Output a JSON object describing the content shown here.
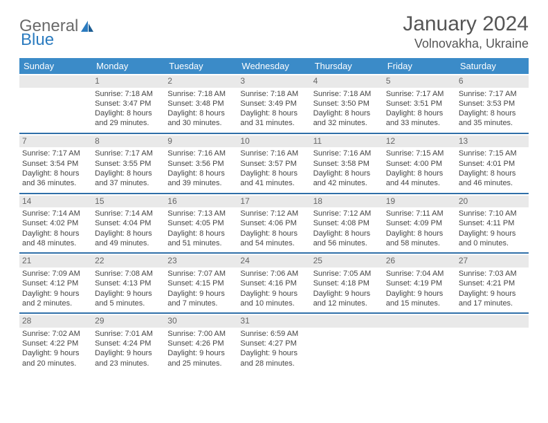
{
  "brand": {
    "word1": "General",
    "word2": "Blue"
  },
  "title": "January 2024",
  "location": "Volnovakha, Ukraine",
  "day_headers": [
    "Sunday",
    "Monday",
    "Tuesday",
    "Wednesday",
    "Thursday",
    "Friday",
    "Saturday"
  ],
  "colors": {
    "header_bg": "#3b8bc8",
    "header_text": "#ffffff",
    "daynum_bg": "#e9e9e9",
    "separator": "#2f6fa8",
    "logo_gray": "#6a6a6a",
    "logo_blue": "#2b7bbf"
  },
  "weeks": [
    [
      null,
      {
        "n": "1",
        "sr": "Sunrise: 7:18 AM",
        "ss": "Sunset: 3:47 PM",
        "d1": "Daylight: 8 hours",
        "d2": "and 29 minutes."
      },
      {
        "n": "2",
        "sr": "Sunrise: 7:18 AM",
        "ss": "Sunset: 3:48 PM",
        "d1": "Daylight: 8 hours",
        "d2": "and 30 minutes."
      },
      {
        "n": "3",
        "sr": "Sunrise: 7:18 AM",
        "ss": "Sunset: 3:49 PM",
        "d1": "Daylight: 8 hours",
        "d2": "and 31 minutes."
      },
      {
        "n": "4",
        "sr": "Sunrise: 7:18 AM",
        "ss": "Sunset: 3:50 PM",
        "d1": "Daylight: 8 hours",
        "d2": "and 32 minutes."
      },
      {
        "n": "5",
        "sr": "Sunrise: 7:17 AM",
        "ss": "Sunset: 3:51 PM",
        "d1": "Daylight: 8 hours",
        "d2": "and 33 minutes."
      },
      {
        "n": "6",
        "sr": "Sunrise: 7:17 AM",
        "ss": "Sunset: 3:53 PM",
        "d1": "Daylight: 8 hours",
        "d2": "and 35 minutes."
      }
    ],
    [
      {
        "n": "7",
        "sr": "Sunrise: 7:17 AM",
        "ss": "Sunset: 3:54 PM",
        "d1": "Daylight: 8 hours",
        "d2": "and 36 minutes."
      },
      {
        "n": "8",
        "sr": "Sunrise: 7:17 AM",
        "ss": "Sunset: 3:55 PM",
        "d1": "Daylight: 8 hours",
        "d2": "and 37 minutes."
      },
      {
        "n": "9",
        "sr": "Sunrise: 7:16 AM",
        "ss": "Sunset: 3:56 PM",
        "d1": "Daylight: 8 hours",
        "d2": "and 39 minutes."
      },
      {
        "n": "10",
        "sr": "Sunrise: 7:16 AM",
        "ss": "Sunset: 3:57 PM",
        "d1": "Daylight: 8 hours",
        "d2": "and 41 minutes."
      },
      {
        "n": "11",
        "sr": "Sunrise: 7:16 AM",
        "ss": "Sunset: 3:58 PM",
        "d1": "Daylight: 8 hours",
        "d2": "and 42 minutes."
      },
      {
        "n": "12",
        "sr": "Sunrise: 7:15 AM",
        "ss": "Sunset: 4:00 PM",
        "d1": "Daylight: 8 hours",
        "d2": "and 44 minutes."
      },
      {
        "n": "13",
        "sr": "Sunrise: 7:15 AM",
        "ss": "Sunset: 4:01 PM",
        "d1": "Daylight: 8 hours",
        "d2": "and 46 minutes."
      }
    ],
    [
      {
        "n": "14",
        "sr": "Sunrise: 7:14 AM",
        "ss": "Sunset: 4:02 PM",
        "d1": "Daylight: 8 hours",
        "d2": "and 48 minutes."
      },
      {
        "n": "15",
        "sr": "Sunrise: 7:14 AM",
        "ss": "Sunset: 4:04 PM",
        "d1": "Daylight: 8 hours",
        "d2": "and 49 minutes."
      },
      {
        "n": "16",
        "sr": "Sunrise: 7:13 AM",
        "ss": "Sunset: 4:05 PM",
        "d1": "Daylight: 8 hours",
        "d2": "and 51 minutes."
      },
      {
        "n": "17",
        "sr": "Sunrise: 7:12 AM",
        "ss": "Sunset: 4:06 PM",
        "d1": "Daylight: 8 hours",
        "d2": "and 54 minutes."
      },
      {
        "n": "18",
        "sr": "Sunrise: 7:12 AM",
        "ss": "Sunset: 4:08 PM",
        "d1": "Daylight: 8 hours",
        "d2": "and 56 minutes."
      },
      {
        "n": "19",
        "sr": "Sunrise: 7:11 AM",
        "ss": "Sunset: 4:09 PM",
        "d1": "Daylight: 8 hours",
        "d2": "and 58 minutes."
      },
      {
        "n": "20",
        "sr": "Sunrise: 7:10 AM",
        "ss": "Sunset: 4:11 PM",
        "d1": "Daylight: 9 hours",
        "d2": "and 0 minutes."
      }
    ],
    [
      {
        "n": "21",
        "sr": "Sunrise: 7:09 AM",
        "ss": "Sunset: 4:12 PM",
        "d1": "Daylight: 9 hours",
        "d2": "and 2 minutes."
      },
      {
        "n": "22",
        "sr": "Sunrise: 7:08 AM",
        "ss": "Sunset: 4:13 PM",
        "d1": "Daylight: 9 hours",
        "d2": "and 5 minutes."
      },
      {
        "n": "23",
        "sr": "Sunrise: 7:07 AM",
        "ss": "Sunset: 4:15 PM",
        "d1": "Daylight: 9 hours",
        "d2": "and 7 minutes."
      },
      {
        "n": "24",
        "sr": "Sunrise: 7:06 AM",
        "ss": "Sunset: 4:16 PM",
        "d1": "Daylight: 9 hours",
        "d2": "and 10 minutes."
      },
      {
        "n": "25",
        "sr": "Sunrise: 7:05 AM",
        "ss": "Sunset: 4:18 PM",
        "d1": "Daylight: 9 hours",
        "d2": "and 12 minutes."
      },
      {
        "n": "26",
        "sr": "Sunrise: 7:04 AM",
        "ss": "Sunset: 4:19 PM",
        "d1": "Daylight: 9 hours",
        "d2": "and 15 minutes."
      },
      {
        "n": "27",
        "sr": "Sunrise: 7:03 AM",
        "ss": "Sunset: 4:21 PM",
        "d1": "Daylight: 9 hours",
        "d2": "and 17 minutes."
      }
    ],
    [
      {
        "n": "28",
        "sr": "Sunrise: 7:02 AM",
        "ss": "Sunset: 4:22 PM",
        "d1": "Daylight: 9 hours",
        "d2": "and 20 minutes."
      },
      {
        "n": "29",
        "sr": "Sunrise: 7:01 AM",
        "ss": "Sunset: 4:24 PM",
        "d1": "Daylight: 9 hours",
        "d2": "and 23 minutes."
      },
      {
        "n": "30",
        "sr": "Sunrise: 7:00 AM",
        "ss": "Sunset: 4:26 PM",
        "d1": "Daylight: 9 hours",
        "d2": "and 25 minutes."
      },
      {
        "n": "31",
        "sr": "Sunrise: 6:59 AM",
        "ss": "Sunset: 4:27 PM",
        "d1": "Daylight: 9 hours",
        "d2": "and 28 minutes."
      },
      null,
      null,
      null
    ]
  ]
}
